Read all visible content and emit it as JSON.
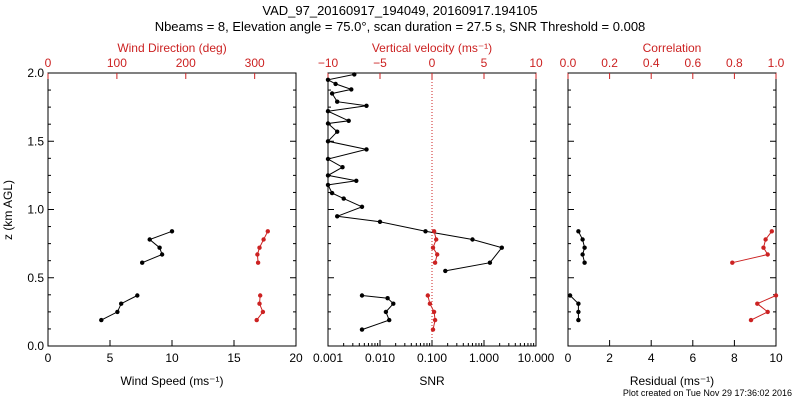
{
  "title": {
    "line1": "VAD_97_20160917_194049, 20160917.194105",
    "line2": "Nbeams = 8, Elevation angle = 75.0°, scan duration = 27.5 s, SNR Threshold = 0.008"
  },
  "footer": "Plot created on Tue Nov 29 17:36:02 2016",
  "colors": {
    "black": "#000000",
    "red": "#cc2222"
  },
  "chart_data": [
    {
      "type": "line",
      "xlabel": "Wind Speed (ms⁻¹)",
      "x2label": "Wind Direction (deg)",
      "ylabel": "z (km AGL)",
      "xlim": [
        0,
        20
      ],
      "x2lim": [
        0,
        360
      ],
      "ylim": [
        0,
        2
      ],
      "xticks": [
        "0",
        "5",
        "10",
        "15",
        "20"
      ],
      "x2ticks": [
        "0",
        "100",
        "200",
        "300"
      ],
      "yticks": [
        "0.0",
        "0.5",
        "1.0",
        "1.5",
        "2.0"
      ],
      "series": [
        {
          "color": "#000000",
          "axis": "bottom",
          "segments": [
            [
              [
                4.3,
                0.19
              ],
              [
                5.6,
                0.25
              ],
              [
                5.9,
                0.31
              ],
              [
                7.2,
                0.37
              ]
            ],
            [
              [
                7.6,
                0.61
              ],
              [
                9.2,
                0.67
              ],
              [
                9.0,
                0.72
              ],
              [
                8.2,
                0.78
              ],
              [
                10.0,
                0.84
              ]
            ]
          ]
        },
        {
          "color": "#cc2222",
          "axis": "top",
          "segments": [
            [
              [
                303,
                0.19
              ],
              [
                312,
                0.25
              ],
              [
                307,
                0.31
              ],
              [
                308,
                0.37
              ]
            ],
            [
              [
                305,
                0.61
              ],
              [
                304,
                0.67
              ],
              [
                307,
                0.72
              ],
              [
                313,
                0.78
              ],
              [
                319,
                0.84
              ]
            ]
          ]
        }
      ]
    },
    {
      "type": "line",
      "xlabel": "SNR",
      "x2label": "Vertical velocity (ms⁻¹)",
      "xscale": "log",
      "xlim": [
        0.001,
        10
      ],
      "x2lim": [
        -10,
        10
      ],
      "ylim": [
        0,
        2
      ],
      "xticks": [
        "0.001",
        "0.010",
        "0.100",
        "1.000",
        "10.000"
      ],
      "x2ticks": [
        "−10",
        "−5",
        "0",
        "5",
        "10"
      ],
      "reference_line": {
        "axis": "top",
        "value": 0,
        "color": "#cc2222",
        "style": "dotted"
      },
      "series": [
        {
          "color": "#000000",
          "axis": "bottom",
          "segments": [
            [
              [
                0.0045,
                0.12
              ],
              [
                0.015,
                0.19
              ],
              [
                0.013,
                0.25
              ],
              [
                0.018,
                0.31
              ],
              [
                0.014,
                0.35
              ],
              [
                0.0045,
                0.37
              ]
            ],
            [
              [
                0.18,
                0.55
              ],
              [
                1.3,
                0.61
              ],
              [
                2.2,
                0.72
              ],
              [
                0.6,
                0.78
              ],
              [
                0.075,
                0.84
              ],
              [
                0.01,
                0.91
              ],
              [
                0.0015,
                0.95
              ],
              [
                0.0045,
                1.02
              ],
              [
                0.002,
                1.08
              ],
              [
                0.0012,
                1.12
              ],
              [
                0.0008,
                1.18
              ],
              [
                0.0035,
                1.21
              ],
              [
                0.0009,
                1.25
              ],
              [
                0.0019,
                1.31
              ],
              [
                0.0006,
                1.37
              ],
              [
                0.0055,
                1.44
              ],
              [
                0.0008,
                1.5
              ],
              [
                0.0015,
                1.57
              ],
              [
                0.0005,
                1.63
              ],
              [
                0.0025,
                1.65
              ],
              [
                0.0005,
                1.72
              ],
              [
                0.0055,
                1.76
              ],
              [
                0.0015,
                1.79
              ],
              [
                0.0012,
                1.85
              ],
              [
                0.0028,
                1.88
              ],
              [
                0.0014,
                1.92
              ],
              [
                0.0008,
                1.95
              ],
              [
                0.0032,
                1.99
              ]
            ]
          ]
        },
        {
          "color": "#cc2222",
          "axis": "top",
          "segments": [
            [
              [
                0.1,
                0.12
              ],
              [
                0.3,
                0.19
              ],
              [
                0.2,
                0.25
              ],
              [
                -0.2,
                0.31
              ],
              [
                -0.4,
                0.37
              ]
            ],
            [
              [
                0.3,
                0.61
              ],
              [
                0.5,
                0.67
              ],
              [
                0.1,
                0.72
              ],
              [
                0.4,
                0.78
              ],
              [
                0.2,
                0.84
              ]
            ]
          ]
        }
      ]
    },
    {
      "type": "line",
      "xlabel": "Residual (ms⁻¹)",
      "x2label": "Correlation",
      "xlim": [
        0,
        10
      ],
      "x2lim": [
        0,
        1
      ],
      "ylim": [
        0,
        2
      ],
      "xticks": [
        "0",
        "2",
        "4",
        "6",
        "8",
        "10"
      ],
      "x2ticks": [
        "0.0",
        "0.2",
        "0.4",
        "0.6",
        "0.8",
        "1.0"
      ],
      "series": [
        {
          "color": "#000000",
          "axis": "bottom",
          "segments": [
            [
              [
                0.5,
                0.19
              ],
              [
                0.5,
                0.25
              ],
              [
                0.5,
                0.31
              ],
              [
                0.1,
                0.37
              ]
            ],
            [
              [
                0.8,
                0.61
              ],
              [
                0.7,
                0.67
              ],
              [
                0.8,
                0.72
              ],
              [
                0.7,
                0.78
              ],
              [
                0.5,
                0.84
              ]
            ]
          ]
        },
        {
          "color": "#cc2222",
          "axis": "top",
          "segments": [
            [
              [
                0.88,
                0.19
              ],
              [
                0.96,
                0.25
              ],
              [
                0.91,
                0.31
              ],
              [
                1.0,
                0.37
              ]
            ],
            [
              [
                0.79,
                0.61
              ],
              [
                0.96,
                0.67
              ],
              [
                0.94,
                0.72
              ],
              [
                0.95,
                0.78
              ],
              [
                0.98,
                0.84
              ]
            ]
          ]
        }
      ]
    }
  ]
}
